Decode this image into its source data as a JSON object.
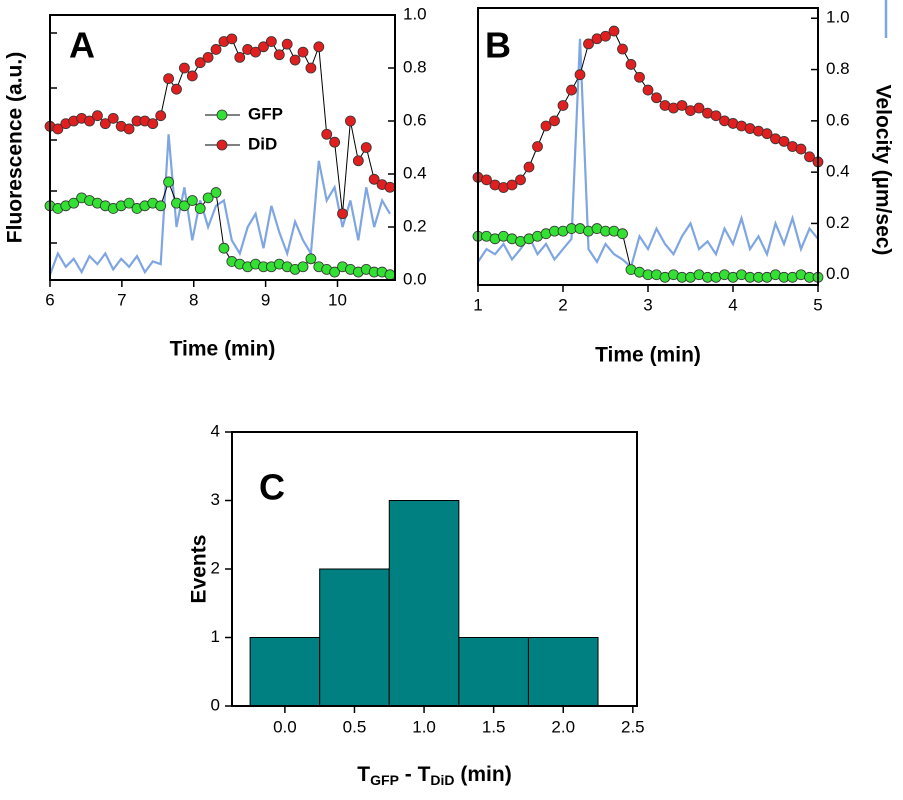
{
  "chart_data": [
    {
      "type": "line",
      "panel": "A",
      "xlabel": "Time (min)",
      "ylabel": "Fluorescence (a.u.)",
      "xlim": [
        6,
        10.8
      ],
      "xticks": [
        6,
        7,
        8,
        9,
        10
      ],
      "ylim": [
        0,
        1
      ],
      "y2lim": [
        0,
        1
      ],
      "y2ticks": [
        {
          "value": 0,
          "label": "0.0"
        },
        0.2,
        0.4,
        0.6,
        0.8,
        {
          "value": 1,
          "label": "1.0"
        }
      ],
      "x": [
        6,
        6.11,
        6.22,
        6.33,
        6.44,
        6.55,
        6.66,
        6.77,
        6.88,
        6.99,
        7.1,
        7.21,
        7.32,
        7.43,
        7.54,
        7.65,
        7.76,
        7.87,
        7.98,
        8.09,
        8.2,
        8.31,
        8.42,
        8.53,
        8.64,
        8.75,
        8.86,
        8.97,
        9.08,
        9.19,
        9.3,
        9.41,
        9.52,
        9.63,
        9.74,
        9.85,
        9.96,
        10.07,
        10.18,
        10.29,
        10.4,
        10.51,
        10.62,
        10.73
      ],
      "series": [
        {
          "color": "#7fa6e2",
          "axis": "y2",
          "marker": false,
          "values": [
            0.02,
            0.1,
            0.05,
            0.08,
            0.03,
            0.09,
            0.06,
            0.1,
            0.04,
            0.08,
            0.05,
            0.09,
            0.03,
            0.07,
            0.06,
            0.55,
            0.2,
            0.35,
            0.15,
            0.3,
            0.2,
            0.28,
            0.3,
            0.15,
            0.1,
            0.2,
            0.25,
            0.12,
            0.28,
            0.18,
            0.1,
            0.22,
            0.15,
            0.1,
            0.45,
            0.3,
            0.35,
            0.2,
            0.3,
            0.15,
            0.35,
            0.2,
            0.3,
            0.25
          ]
        },
        {
          "name": "GFP",
          "color": "#33e033",
          "axis": "y",
          "marker": true,
          "values": [
            0.28,
            0.27,
            0.28,
            0.29,
            0.31,
            0.3,
            0.29,
            0.28,
            0.27,
            0.28,
            0.29,
            0.27,
            0.28,
            0.29,
            0.28,
            0.37,
            0.29,
            0.28,
            0.3,
            0.27,
            0.31,
            0.33,
            0.12,
            0.07,
            0.06,
            0.05,
            0.06,
            0.05,
            0.05,
            0.06,
            0.05,
            0.04,
            0.05,
            0.08,
            0.05,
            0.04,
            0.03,
            0.05,
            0.04,
            0.03,
            0.04,
            0.03,
            0.03,
            0.02
          ]
        },
        {
          "name": "DiD",
          "color": "#e02020",
          "axis": "y",
          "marker": true,
          "values": [
            0.58,
            0.57,
            0.59,
            0.6,
            0.61,
            0.6,
            0.62,
            0.59,
            0.61,
            0.58,
            0.57,
            0.6,
            0.6,
            0.59,
            0.62,
            0.76,
            0.72,
            0.8,
            0.77,
            0.82,
            0.84,
            0.87,
            0.9,
            0.91,
            0.84,
            0.87,
            0.86,
            0.88,
            0.9,
            0.85,
            0.89,
            0.83,
            0.86,
            0.8,
            0.88,
            0.55,
            0.52,
            0.25,
            0.6,
            0.45,
            0.5,
            0.38,
            0.36,
            0.35
          ]
        }
      ]
    },
    {
      "type": "line",
      "panel": "B",
      "xlabel": "Time (min)",
      "y2label": "Velocity (µm/sec)",
      "xlim": [
        1,
        5
      ],
      "xticks": [
        1,
        2,
        3,
        4,
        5
      ],
      "ylim": [
        -0.04,
        1.04
      ],
      "y2lim": [
        -0.04,
        1.04
      ],
      "y2ticks": [
        {
          "value": 0,
          "label": "0.0"
        },
        0.2,
        0.4,
        0.6,
        0.8,
        {
          "value": 1,
          "label": "1.0"
        }
      ],
      "x": [
        1,
        1.1,
        1.2,
        1.3,
        1.4,
        1.5,
        1.6,
        1.7,
        1.8,
        1.9,
        2,
        2.1,
        2.2,
        2.3,
        2.4,
        2.5,
        2.6,
        2.7,
        2.8,
        2.9,
        3,
        3.1,
        3.2,
        3.3,
        3.4,
        3.5,
        3.6,
        3.7,
        3.8,
        3.9,
        4,
        4.1,
        4.2,
        4.3,
        4.4,
        4.5,
        4.6,
        4.7,
        4.8,
        4.9,
        5
      ],
      "series": [
        {
          "color": "#7fa6e2",
          "axis": "y2",
          "marker": false,
          "values": [
            0.05,
            0.1,
            0.08,
            0.12,
            0.06,
            0.1,
            0.15,
            0.08,
            0.12,
            0.06,
            0.1,
            0.14,
            0.92,
            0.1,
            0.05,
            0.12,
            0.08,
            0.06,
            0.03,
            0.15,
            0.1,
            0.18,
            0.12,
            0.08,
            0.15,
            0.2,
            0.1,
            0.13,
            0.08,
            0.18,
            0.12,
            0.22,
            0.1,
            0.15,
            0.08,
            0.2,
            0.12,
            0.22,
            0.1,
            0.18,
            0.14
          ]
        },
        {
          "color": "#33e033",
          "axis": "y",
          "marker": true,
          "values": [
            0.15,
            0.15,
            0.14,
            0.15,
            0.14,
            0.13,
            0.14,
            0.15,
            0.16,
            0.17,
            0.17,
            0.18,
            0.18,
            0.17,
            0.18,
            0.17,
            0.17,
            0.16,
            0.02,
            0.01,
            0.0,
            0.0,
            -0.01,
            0.0,
            -0.01,
            -0.01,
            0.0,
            -0.01,
            -0.01,
            0.0,
            -0.01,
            0.0,
            -0.01,
            -0.01,
            -0.01,
            0.0,
            -0.01,
            -0.01,
            0.0,
            -0.01,
            -0.01
          ]
        },
        {
          "color": "#e02020",
          "axis": "y",
          "marker": true,
          "values": [
            0.38,
            0.37,
            0.35,
            0.34,
            0.35,
            0.37,
            0.42,
            0.5,
            0.58,
            0.6,
            0.66,
            0.72,
            0.78,
            0.9,
            0.92,
            0.93,
            0.95,
            0.88,
            0.82,
            0.77,
            0.72,
            0.69,
            0.66,
            0.65,
            0.66,
            0.64,
            0.65,
            0.63,
            0.62,
            0.6,
            0.59,
            0.58,
            0.57,
            0.56,
            0.55,
            0.53,
            0.52,
            0.5,
            0.49,
            0.46,
            0.44
          ]
        }
      ]
    },
    {
      "type": "histogram",
      "panel": "C",
      "ylabel": "Events",
      "xlabel_parts": [
        "T",
        "GFP",
        " - T",
        "DiD",
        " (min)"
      ],
      "xlim": [
        -0.38,
        2.53
      ],
      "xticks": [
        {
          "value": 0,
          "label": "0.0"
        },
        0.5,
        {
          "value": 1,
          "label": "1.0"
        },
        1.5,
        {
          "value": 2,
          "label": "2.0"
        },
        2.5
      ],
      "ylim": [
        0,
        4
      ],
      "yticks": [
        0,
        1,
        2,
        3,
        4
      ],
      "bins": [
        -0.25,
        0.25,
        0.75,
        1.25,
        1.75,
        2.25
      ],
      "values": [
        1,
        2,
        3,
        1,
        1
      ],
      "color": "#008080"
    }
  ]
}
